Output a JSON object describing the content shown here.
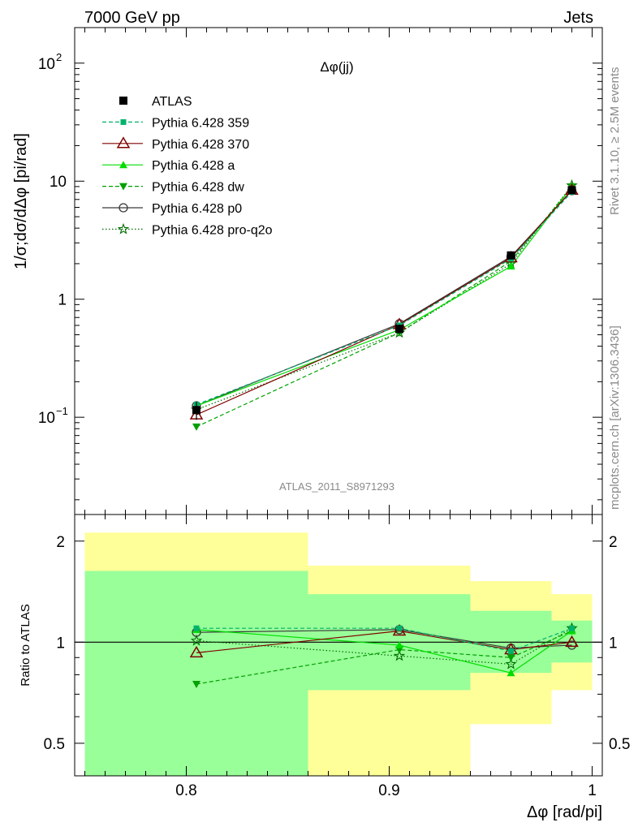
{
  "header": {
    "left": "7000 GeV pp",
    "right": "Jets"
  },
  "side_labels": {
    "rivet": "Rivet 3.1.10, ≥ 2.5M events",
    "mcplots": "mcplots.cern.ch [arXiv:1306.3436]"
  },
  "colors": {
    "atlas": "#000000",
    "p359": "#00b36b",
    "p370": "#800000",
    "pa": "#00dd00",
    "pdw": "#00a000",
    "pp0": "#3a3a3a",
    "pq2o": "#006e00",
    "band_yellow": "#ffff99",
    "band_green": "#99ff99"
  },
  "chart_data": [
    {
      "type": "line",
      "title": "Δφ(jj)",
      "watermark": "ATLAS_2011_S8971293",
      "ylabel": "1/σ;dσ/dΔφ [pi/rad]",
      "yscale": "log",
      "ylim": [
        0.015,
        200
      ],
      "xlim": [
        0.745,
        1.005
      ],
      "yticks": [
        {
          "value": 0.1,
          "base": "10",
          "exp": "−1"
        },
        {
          "value": 1,
          "label": "1"
        },
        {
          "value": 10,
          "label": "10"
        },
        {
          "value": 100,
          "base": "10",
          "exp": "2"
        }
      ],
      "legend_position": "top-left",
      "series": [
        {
          "name": "ATLAS",
          "key": "atlas",
          "x": [
            0.805,
            0.905,
            0.96,
            0.99
          ],
          "y": [
            0.115,
            0.56,
            2.35,
            8.4
          ],
          "err": [
            0.02,
            0.05,
            0.15,
            0.5
          ]
        },
        {
          "name": "Pythia 6.428 359",
          "key": "p359",
          "x": [
            0.805,
            0.905,
            0.96,
            0.99
          ],
          "y": [
            0.128,
            0.6,
            2.2,
            8.1
          ]
        },
        {
          "name": "Pythia 6.428 370",
          "key": "p370",
          "x": [
            0.805,
            0.905,
            0.96,
            0.99
          ],
          "y": [
            0.105,
            0.61,
            2.25,
            8.4
          ]
        },
        {
          "name": "Pythia 6.428 a",
          "key": "pa",
          "x": [
            0.805,
            0.905,
            0.96,
            0.99
          ],
          "y": [
            0.125,
            0.55,
            1.9,
            9.0
          ]
        },
        {
          "name": "Pythia 6.428 dw",
          "key": "pdw",
          "x": [
            0.805,
            0.905,
            0.96,
            0.99
          ],
          "y": [
            0.083,
            0.52,
            2.1,
            9.0
          ]
        },
        {
          "name": "Pythia 6.428 p0",
          "key": "pp0",
          "x": [
            0.805,
            0.905,
            0.96,
            0.99
          ],
          "y": [
            0.125,
            0.62,
            2.3,
            8.3
          ]
        },
        {
          "name": "Pythia 6.428 pro-q2o",
          "key": "pq2o",
          "x": [
            0.805,
            0.905,
            0.96,
            0.99
          ],
          "y": [
            0.116,
            0.52,
            2.0,
            9.2
          ]
        }
      ]
    },
    {
      "type": "line",
      "ylabel": "Ratio to ATLAS",
      "xlabel": "Δφ [rad/pi]",
      "yscale": "log",
      "ylim": [
        0.4,
        2.4
      ],
      "xlim": [
        0.745,
        1.005
      ],
      "xticks": [
        {
          "value": 0.8,
          "label": "0.8"
        },
        {
          "value": 0.9,
          "label": "0.9"
        },
        {
          "value": 1.0,
          "label": "1"
        }
      ],
      "yticks": [
        {
          "value": 0.5,
          "label": "0.5"
        },
        {
          "value": 1,
          "label": "1"
        },
        {
          "value": 2,
          "label": "2"
        }
      ],
      "bands": [
        {
          "x0": 0.75,
          "x1": 0.86,
          "yellow": [
            0.4,
            2.12
          ],
          "green": [
            0.4,
            1.63
          ]
        },
        {
          "x0": 0.86,
          "x1": 0.94,
          "yellow": [
            0.4,
            1.69
          ],
          "green": [
            0.72,
            1.39
          ]
        },
        {
          "x0": 0.94,
          "x1": 0.98,
          "yellow": [
            0.57,
            1.52
          ],
          "green": [
            0.81,
            1.24
          ]
        },
        {
          "x0": 0.98,
          "x1": 1.0,
          "yellow": [
            0.72,
            1.39
          ],
          "green": [
            0.87,
            1.16
          ]
        }
      ],
      "series": [
        {
          "key": "p359",
          "x": [
            0.805,
            0.905,
            0.96,
            0.99
          ],
          "y": [
            1.1,
            1.1,
            0.94,
            1.1
          ]
        },
        {
          "key": "p370",
          "x": [
            0.805,
            0.905,
            0.96,
            0.99
          ],
          "y": [
            0.93,
            1.08,
            0.95,
            1.0
          ]
        },
        {
          "key": "pa",
          "x": [
            0.805,
            0.905,
            0.96,
            0.99
          ],
          "y": [
            1.09,
            0.98,
            0.81,
            1.08
          ]
        },
        {
          "key": "pdw",
          "x": [
            0.805,
            0.905,
            0.96,
            0.99
          ],
          "y": [
            0.75,
            0.95,
            0.9,
            1.08
          ]
        },
        {
          "key": "pp0",
          "x": [
            0.805,
            0.905,
            0.96,
            0.99
          ],
          "y": [
            1.07,
            1.09,
            0.96,
            0.98
          ]
        },
        {
          "key": "pq2o",
          "x": [
            0.805,
            0.905,
            0.96,
            0.99
          ],
          "y": [
            1.01,
            0.91,
            0.86,
            1.1
          ]
        }
      ]
    }
  ]
}
